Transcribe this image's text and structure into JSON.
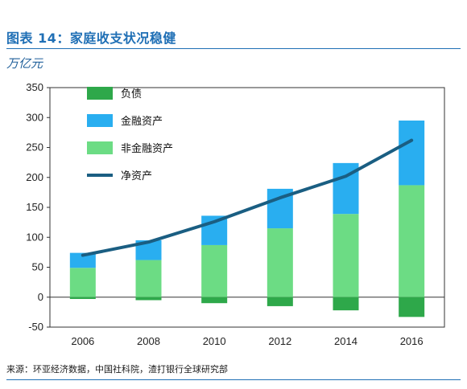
{
  "header": {
    "title": "图表 14：家庭收支状况稳健",
    "unit": "万亿元"
  },
  "source": "来源：环亚经济数据，中国社科院，渣打银行全球研究部",
  "colors": {
    "liabilities": "#2ea84a",
    "financial_assets": "#29aef0",
    "nonfinancial_assets": "#6cdc84",
    "net_assets": "#1a5e82",
    "title": "#1f6fb5"
  },
  "chart_data": {
    "type": "bar",
    "stacked": true,
    "categories": [
      "2006",
      "2008",
      "2010",
      "2012",
      "2014",
      "2016"
    ],
    "series": [
      {
        "name": "负债",
        "kind": "bar",
        "color": "#2ea84a",
        "values": [
          -3,
          -5,
          -10,
          -15,
          -22,
          -33
        ]
      },
      {
        "name": "金融资产",
        "kind": "bar",
        "color": "#29aef0",
        "values": [
          25,
          33,
          49,
          66,
          85,
          108
        ]
      },
      {
        "name": "非金融资产",
        "kind": "bar",
        "color": "#6cdc84",
        "values": [
          49,
          62,
          87,
          115,
          139,
          187
        ]
      },
      {
        "name": "净资产",
        "kind": "line",
        "color": "#1a5e82",
        "values": [
          70,
          92,
          126,
          166,
          202,
          262
        ]
      }
    ],
    "ylim": [
      -50,
      350
    ],
    "yticks": [
      -50,
      0,
      50,
      100,
      150,
      200,
      250,
      300,
      350
    ],
    "ytick_labels": [
      "-50",
      "0",
      "50",
      "100",
      "150",
      "200",
      "250",
      "300",
      "350"
    ],
    "grid": false,
    "legend": "top-left",
    "xlabel": "",
    "ylabel": "万亿元"
  }
}
